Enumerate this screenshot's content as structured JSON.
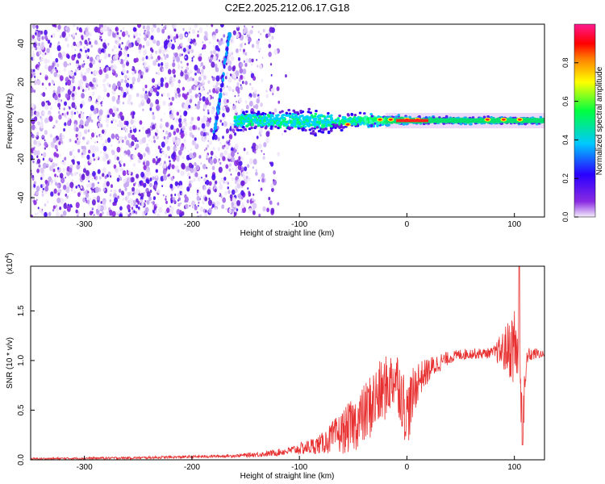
{
  "figure_title": "C2E2.2025.212.06.17.G18",
  "chart_data": [
    {
      "type": "heatmap",
      "title": "",
      "xlabel": "Height of straight line (km)",
      "ylabel": "Frequency (Hz)",
      "xlim": [
        -350,
        128
      ],
      "ylim": [
        -50,
        50
      ],
      "x_ticks": [
        -300,
        -200,
        -100,
        0,
        100
      ],
      "y_ticks": [
        -40,
        -20,
        0,
        20,
        40
      ],
      "x_tick_labels": [
        "-300",
        "-200",
        "-100",
        "0",
        "100"
      ],
      "y_tick_labels": [
        "-40",
        "-20",
        "0",
        "20",
        "40"
      ],
      "colorbar": {
        "label": "Normalized spectral amplitude",
        "range": [
          0,
          1
        ],
        "ticks": [
          0.0,
          0.2,
          0.4,
          0.6,
          0.8
        ],
        "tick_labels": [
          "0.0",
          "0.2",
          "0.4",
          "0.6",
          "0.8"
        ],
        "colormap": [
          "#f4eefc",
          "#8a2be2",
          "#2a00ff",
          "#00c8ff",
          "#00ff40",
          "#ffff00",
          "#ff8000",
          "#ff0000",
          "#ff1a90"
        ]
      },
      "features": {
        "noise_region_x": [
          -350,
          -120
        ],
        "diagonal_streak": {
          "x": [
            -180,
            -165
          ],
          "y": [
            -10,
            45
          ]
        },
        "signal_band_center_hz": 0,
        "signal_band_x": [
          -160,
          128
        ],
        "peak_amplitude_points_x": [
          -55,
          -25,
          -15,
          0,
          10,
          75,
          90,
          105
        ]
      }
    },
    {
      "type": "line",
      "title": "",
      "xlabel": "Height of straight line (km)",
      "ylabel": "SNR (10 * v/v)",
      "y_multiplier": "(x10",
      "y_multiplier_exponent": "4",
      "y_multiplier_close": ")",
      "xlim": [
        -350,
        128
      ],
      "ylim": [
        0,
        1.95
      ],
      "x_ticks": [
        -300,
        -200,
        -100,
        0,
        100
      ],
      "y_ticks": [
        0.0,
        0.5,
        1.0,
        1.5
      ],
      "x_tick_labels": [
        "-300",
        "-200",
        "-100",
        "0",
        "100"
      ],
      "y_tick_labels": [
        "0.0",
        "0.5",
        "1.0",
        "1.5"
      ],
      "series": [
        {
          "color": "#e83030",
          "x": [
            -350,
            -300,
            -250,
            -200,
            -160,
            -130,
            -110,
            -95,
            -80,
            -70,
            -60,
            -50,
            -40,
            -30,
            -20,
            -10,
            0,
            10,
            20,
            30,
            40,
            50,
            60,
            70,
            80,
            90,
            100,
            105,
            108,
            112,
            120,
            128
          ],
          "y": [
            0.01,
            0.015,
            0.02,
            0.03,
            0.04,
            0.06,
            0.09,
            0.12,
            0.16,
            0.22,
            0.28,
            0.35,
            0.45,
            0.6,
            0.72,
            0.85,
            0.45,
            0.8,
            0.9,
            0.98,
            1.03,
            1.06,
            1.07,
            1.07,
            1.08,
            1.1,
            1.15,
            1.1,
            0.4,
            1.05,
            1.07,
            1.06
          ],
          "noise_envelope": [
            {
              "x": -350,
              "amp": 0.01
            },
            {
              "x": -160,
              "amp": 0.015
            },
            {
              "x": -110,
              "amp": 0.04
            },
            {
              "x": -80,
              "amp": 0.1
            },
            {
              "x": -55,
              "amp": 0.25
            },
            {
              "x": -30,
              "amp": 0.35
            },
            {
              "x": -10,
              "amp": 0.3
            },
            {
              "x": 0,
              "amp": 0.35
            },
            {
              "x": 15,
              "amp": 0.15
            },
            {
              "x": 40,
              "amp": 0.06
            },
            {
              "x": 80,
              "amp": 0.05
            },
            {
              "x": 95,
              "amp": 0.3
            },
            {
              "x": 105,
              "amp": 0.55
            },
            {
              "x": 112,
              "amp": 0.08
            },
            {
              "x": 128,
              "amp": 0.03
            }
          ]
        }
      ]
    }
  ]
}
